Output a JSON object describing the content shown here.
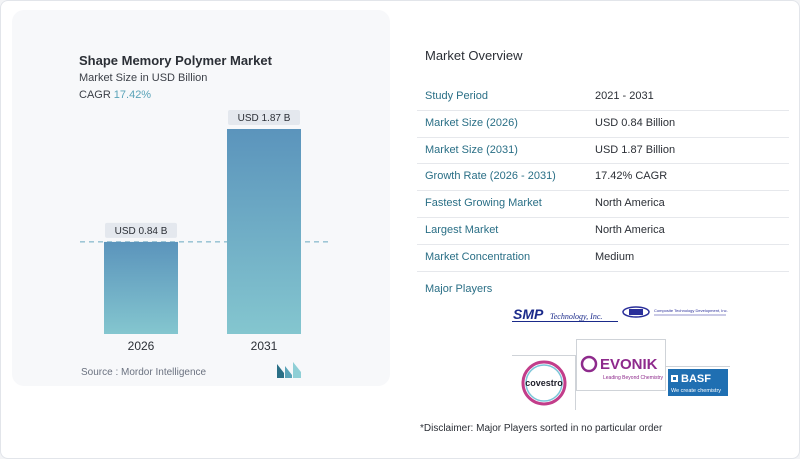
{
  "chart": {
    "title": "Shape Memory Polymer Market",
    "subtitle": "Market Size in USD Billion",
    "cagr_label": "CAGR",
    "cagr_value": "17.42%",
    "source": "Source :  Mordor Intelligence"
  },
  "chart_data": {
    "type": "bar",
    "categories": [
      "2026",
      "2031"
    ],
    "values": [
      0.84,
      1.87
    ],
    "data_labels": [
      "USD 0.84 B",
      "USD 1.87 B"
    ],
    "title": "Shape Memory Polymer Market",
    "ylabel": "Market Size in USD Billion",
    "xlabel": "",
    "ylim": [
      0,
      1.87
    ],
    "grid": false,
    "reference_line": "dashed at 2026 value",
    "colors": {
      "bar_top": "#5b94bc",
      "bar_bottom": "#84c6cf",
      "label_bg": "#e4e8ee",
      "dash": "#6aa8c0"
    }
  },
  "overview": {
    "title": "Market Overview",
    "rows": [
      {
        "label": "Study Period",
        "value": "2021 - 2031"
      },
      {
        "label": "Market Size (2026)",
        "value": "USD 0.84 Billion"
      },
      {
        "label": "Market Size (2031)",
        "value": "USD 1.87 Billion"
      },
      {
        "label": "Growth Rate (2026 - 2031)",
        "value": "17.42% CAGR"
      },
      {
        "label": "Fastest Growing Market",
        "value": "North America"
      },
      {
        "label": "Largest Market",
        "value": "North America"
      },
      {
        "label": "Market Concentration",
        "value": "Medium"
      }
    ]
  },
  "players": {
    "title": "Major Players",
    "smp": {
      "main": "SMP",
      "sub": "Technology, Inc."
    },
    "ctd": "Composite Technology Development, Inc.",
    "covestro": "covestro",
    "evonik": {
      "main": "EVONIK",
      "sub": "Leading Beyond Chemistry"
    },
    "basf": {
      "main": "BASF",
      "sub": "We create chemistry"
    }
  },
  "disclaimer": "*Disclaimer: Major Players sorted in no particular order",
  "colors": {
    "accent": "#2a6f86",
    "cagr": "#5aa3b8",
    "evonik": "#8e2a8c",
    "basf": "#1f6fb2",
    "smp": "#1a2a8a"
  }
}
